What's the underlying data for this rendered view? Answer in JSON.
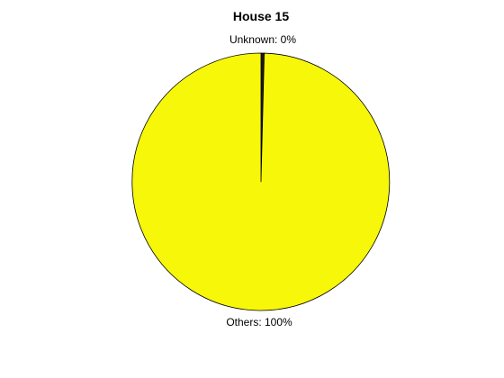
{
  "chart_data": {
    "type": "pie",
    "title": "House 15",
    "slices": [
      {
        "label": "Unknown: 0%",
        "value": 0.4,
        "color": "#1a1a1a"
      },
      {
        "label": "Others: 100%",
        "value": 99.6,
        "color": "#f7f70a"
      }
    ],
    "start": "top",
    "direction": "clockwise",
    "edge_color": "#000000"
  }
}
